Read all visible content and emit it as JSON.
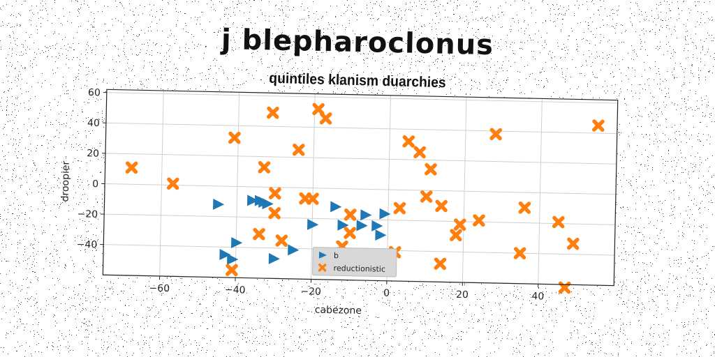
{
  "title": "j blepharoclonus",
  "subtitle": "quintiles klanism duarchies",
  "chart_data": {
    "type": "scatter",
    "xlabel": "cabezone",
    "ylabel": "droopier",
    "xlim": [
      -75,
      60
    ],
    "ylim": [
      -60,
      62
    ],
    "xticks": [
      "−60",
      "−40",
      "−20",
      "0",
      "20",
      "40"
    ],
    "xtick_values": [
      -60,
      -40,
      -20,
      0,
      20,
      40
    ],
    "yticks": [
      "−40",
      "−20",
      "0",
      "20",
      "40",
      "60"
    ],
    "ytick_values": [
      -40,
      -20,
      0,
      20,
      40,
      60
    ],
    "grid": true,
    "legend_position": "bottom-center",
    "series": [
      {
        "name": "b",
        "marker": "triangle-right",
        "color": "#1f77b4",
        "points": [
          [
            -45,
            -12
          ],
          [
            -36,
            -9
          ],
          [
            -34,
            -9
          ],
          [
            -33,
            -10
          ],
          [
            -32,
            -11
          ],
          [
            -20,
            -24
          ],
          [
            -14,
            -12
          ],
          [
            -12,
            -24
          ],
          [
            -6,
            -17
          ],
          [
            -7,
            -24
          ],
          [
            -3,
            -24
          ],
          [
            -1,
            -16
          ],
          [
            -2,
            -30
          ],
          [
            -40,
            -37
          ],
          [
            -43,
            -45
          ],
          [
            -41,
            -48
          ],
          [
            -30,
            -47
          ],
          [
            -25,
            -41
          ],
          [
            -12,
            -42
          ],
          [
            -6,
            -45
          ]
        ]
      },
      {
        "name": "reductionistic",
        "marker": "x-filled",
        "color": "#ff7f0e",
        "points": [
          [
            -68,
            11
          ],
          [
            -57,
            1
          ],
          [
            -41,
            32
          ],
          [
            -31,
            49
          ],
          [
            -33,
            13
          ],
          [
            -24,
            25
          ],
          [
            -19,
            52
          ],
          [
            -17,
            46
          ],
          [
            -22,
            -7
          ],
          [
            -20,
            -7
          ],
          [
            -30,
            -4
          ],
          [
            -30,
            -17
          ],
          [
            -34,
            -31
          ],
          [
            -28,
            -35
          ],
          [
            -41,
            -55
          ],
          [
            -10,
            -17
          ],
          [
            -10,
            -29
          ],
          [
            -12,
            -38
          ],
          [
            3,
            -12
          ],
          [
            2,
            -41
          ],
          [
            5,
            32
          ],
          [
            8,
            25
          ],
          [
            11,
            14
          ],
          [
            10,
            -4
          ],
          [
            14,
            -10
          ],
          [
            18,
            -29
          ],
          [
            19,
            -22
          ],
          [
            24,
            -19
          ],
          [
            14,
            -48
          ],
          [
            28,
            38
          ],
          [
            36,
            -10
          ],
          [
            35,
            -40
          ],
          [
            45,
            -19
          ],
          [
            49,
            -33
          ],
          [
            47,
            -62
          ],
          [
            55,
            45
          ]
        ]
      }
    ]
  }
}
